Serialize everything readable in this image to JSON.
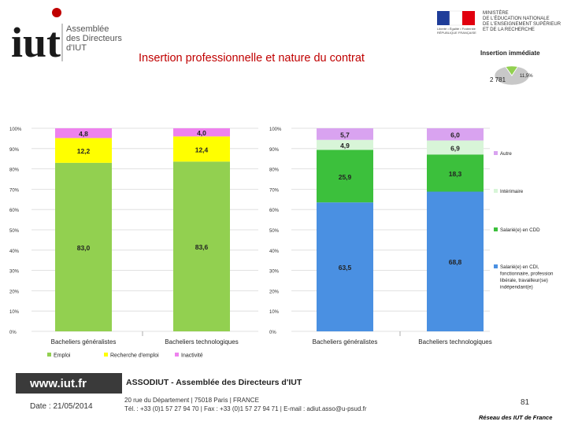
{
  "header": {
    "logo_text": "iut",
    "logo_line1": "Assemblée",
    "logo_line2": "des Directeurs",
    "logo_line3": "d'IUT",
    "ministry_line1": "MINISTÈRE",
    "ministry_line2": "DE L'ÉDUCATION NATIONALE",
    "ministry_line3": "DE L'ENSEIGNEMENT SUPÉRIEUR",
    "ministry_line4": "ET DE LA RECHERCHE",
    "ministry_flag_caption": "Liberté • Égalité • Fraternité",
    "ministry_flag_caption2": "RÉPUBLIQUE FRANÇAISE",
    "title": "Insertion professionnelle et nature du contrat"
  },
  "chart_data": [
    {
      "type": "pie",
      "title": "Insertion immédiate",
      "slices": [
        {
          "label": "2 781",
          "value": 2781,
          "color": "#c8c8c8"
        },
        {
          "label": "11,5%",
          "value": 361,
          "color": "#92d050"
        }
      ]
    },
    {
      "type": "bar",
      "stacked": true,
      "categories": [
        "Bacheliers généralistes",
        "Bacheliers technologiques"
      ],
      "ylim": [
        0,
        100
      ],
      "yticks": [
        "0%",
        "10%",
        "20%",
        "30%",
        "40%",
        "50%",
        "60%",
        "70%",
        "80%",
        "90%",
        "100%"
      ],
      "series": [
        {
          "name": "Emploi",
          "color": "#92d050",
          "values": [
            83.0,
            83.6
          ],
          "labels": [
            "83,0",
            "83,6"
          ]
        },
        {
          "name": "Recherche d'emploi",
          "color": "#ffff00",
          "values": [
            12.2,
            12.4
          ],
          "labels": [
            "12,2",
            "12,4"
          ]
        },
        {
          "name": "Inactivité",
          "color": "#ee82ee",
          "values": [
            4.8,
            4.0
          ],
          "labels": [
            "4,8",
            "4,0"
          ]
        }
      ]
    },
    {
      "type": "bar",
      "stacked": true,
      "categories": [
        "Bacheliers généralistes",
        "Bacheliers technologiques"
      ],
      "ylim": [
        0,
        100
      ],
      "yticks": [
        "0%",
        "10%",
        "20%",
        "30%",
        "40%",
        "50%",
        "60%",
        "70%",
        "80%",
        "90%",
        "100%"
      ],
      "series": [
        {
          "name": "Salarié(e) en CDI, fonctionnaire, profession libérale, travailleur(se) indépendant(e)",
          "color": "#4a90e2",
          "values": [
            63.5,
            68.8
          ],
          "labels": [
            "63,5",
            "68,8"
          ]
        },
        {
          "name": "Salarié(e) en CDD",
          "color": "#3cc03c",
          "values": [
            25.9,
            18.3
          ],
          "labels": [
            "25,9",
            "18,3"
          ]
        },
        {
          "name": "Intérimaire",
          "color": "#d8f5d8",
          "values": [
            4.9,
            6.9
          ],
          "labels": [
            "4,9",
            "6,9"
          ]
        },
        {
          "name": "Autre",
          "color": "#d9a3f0",
          "values": [
            5.7,
            6.0
          ],
          "labels": [
            "5,7",
            "6,0"
          ]
        }
      ],
      "legend_lines": {
        "autre": "Autre",
        "interim": "Intérimaire",
        "cdd": "Salarié(e) en CDD",
        "cdi1": "Salarié(e) en CDI,",
        "cdi2": "fonctionnaire, profession",
        "cdi3": "libérale, travailleur(se)",
        "cdi4": "indépendant(e)"
      }
    }
  ],
  "footer": {
    "url": "www.iut.fr",
    "org": "ASSODIUT - Assemblée des Directeurs d'IUT",
    "date": "Date : 21/05/2014",
    "address": "20 rue du Département | 75018 Paris | FRANCE",
    "contact": "Tél. : +33 (0)1 57 27 94 70 | Fax : +33 (0)1 57 27 94 71 | E-mail : adiut.asso@u-psud.fr",
    "page": "81",
    "network": "Réseau des IUT de France"
  }
}
